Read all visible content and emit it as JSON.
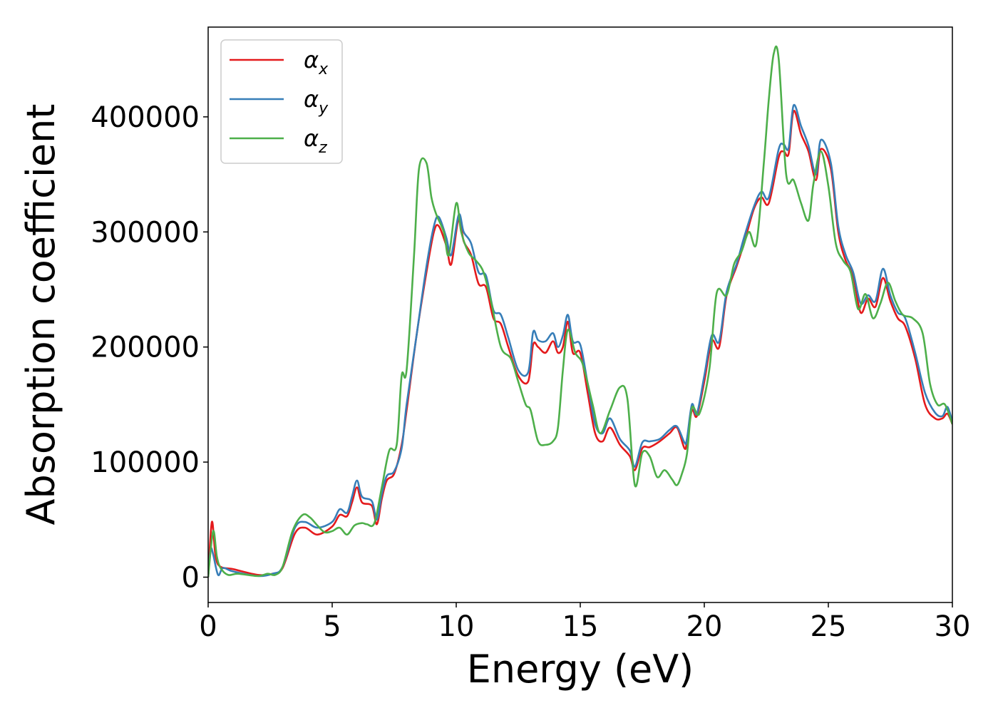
{
  "chart_data": {
    "type": "line",
    "xlabel": "Energy (eV)",
    "ylabel": "Absorption coefficient",
    "xlim": [
      0,
      30
    ],
    "ylim": [
      -22000,
      478000
    ],
    "xticks": [
      0,
      5,
      10,
      15,
      20,
      25,
      30
    ],
    "xtick_labels": [
      "0",
      "5",
      "10",
      "15",
      "20",
      "25",
      "30"
    ],
    "yticks": [
      0,
      100000,
      200000,
      300000,
      400000
    ],
    "ytick_labels": [
      "0",
      "100000",
      "200000",
      "300000",
      "400000"
    ],
    "grid": false,
    "legend_position": "top-left",
    "series": [
      {
        "name": "αx",
        "label_base": "α",
        "label_sub": "x",
        "color": "#e41a1c",
        "x": [
          0,
          0.15,
          0.3,
          0.5,
          1.0,
          2.0,
          2.6,
          3.0,
          3.5,
          3.9,
          4.4,
          5.0,
          5.3,
          5.6,
          5.8,
          6.0,
          6.2,
          6.6,
          6.8,
          7.0,
          7.2,
          7.5,
          7.8,
          8.0,
          8.4,
          8.8,
          9.1,
          9.3,
          9.6,
          9.8,
          10.1,
          10.3,
          10.6,
          10.9,
          11.2,
          11.5,
          11.8,
          12.1,
          12.5,
          12.9,
          13.1,
          13.3,
          13.6,
          13.9,
          14.1,
          14.3,
          14.5,
          14.7,
          15.0,
          15.3,
          15.6,
          15.9,
          16.2,
          16.6,
          17.0,
          17.2,
          17.5,
          17.8,
          18.2,
          18.6,
          18.9,
          19.2,
          19.3,
          19.5,
          19.7,
          20.0,
          20.3,
          20.6,
          20.9,
          21.3,
          21.6,
          22.0,
          22.3,
          22.6,
          23.0,
          23.2,
          23.4,
          23.6,
          23.9,
          24.2,
          24.5,
          24.7,
          25.1,
          25.4,
          25.7,
          26.0,
          26.3,
          26.6,
          26.9,
          27.2,
          27.5,
          27.8,
          28.1,
          28.5,
          28.9,
          29.3,
          29.6,
          29.8,
          30.0
        ],
        "y": [
          0,
          48000,
          18000,
          9000,
          7000,
          2000,
          3000,
          8000,
          38000,
          43000,
          37000,
          44000,
          54000,
          53000,
          65000,
          78000,
          65000,
          62000,
          46000,
          68000,
          84000,
          90000,
          115000,
          145000,
          210000,
          265000,
          300000,
          305000,
          288000,
          272000,
          312000,
          292000,
          280000,
          255000,
          252000,
          225000,
          220000,
          200000,
          175000,
          170000,
          202000,
          200000,
          195000,
          205000,
          195000,
          200000,
          222000,
          195000,
          195000,
          160000,
          125000,
          118000,
          130000,
          115000,
          105000,
          93000,
          112000,
          113000,
          118000,
          125000,
          130000,
          112000,
          118000,
          145000,
          140000,
          170000,
          205000,
          200000,
          245000,
          270000,
          290000,
          320000,
          330000,
          325000,
          365000,
          370000,
          368000,
          405000,
          385000,
          370000,
          345000,
          372000,
          355000,
          300000,
          275000,
          262000,
          230000,
          242000,
          235000,
          260000,
          240000,
          225000,
          218000,
          190000,
          150000,
          138000,
          138000,
          142000,
          133000
        ]
      },
      {
        "name": "αy",
        "label_base": "α",
        "label_sub": "y",
        "color": "#377eb8",
        "x": [
          0,
          0.1,
          0.2,
          0.4,
          0.6,
          1.0,
          2.0,
          2.6,
          3.0,
          3.5,
          3.9,
          4.4,
          5.0,
          5.3,
          5.6,
          5.8,
          6.0,
          6.2,
          6.6,
          6.8,
          7.0,
          7.2,
          7.5,
          7.8,
          8.0,
          8.4,
          8.8,
          9.1,
          9.3,
          9.6,
          9.8,
          10.1,
          10.3,
          10.6,
          10.9,
          11.2,
          11.5,
          11.8,
          12.1,
          12.5,
          12.9,
          13.1,
          13.3,
          13.6,
          13.9,
          14.1,
          14.3,
          14.5,
          14.7,
          15.0,
          15.3,
          15.6,
          15.9,
          16.2,
          16.6,
          17.0,
          17.2,
          17.5,
          17.8,
          18.2,
          18.6,
          18.9,
          19.2,
          19.3,
          19.5,
          19.7,
          20.0,
          20.3,
          20.6,
          20.9,
          21.3,
          21.6,
          22.0,
          22.3,
          22.6,
          23.0,
          23.2,
          23.4,
          23.6,
          23.9,
          24.2,
          24.5,
          24.7,
          25.1,
          25.4,
          25.7,
          26.0,
          26.3,
          26.6,
          26.9,
          27.2,
          27.5,
          27.8,
          28.1,
          28.5,
          28.9,
          29.3,
          29.6,
          29.8,
          30.0
        ],
        "y": [
          0,
          24000,
          20000,
          2000,
          8000,
          5000,
          1000,
          3000,
          9000,
          43000,
          48000,
          43000,
          48000,
          59000,
          56000,
          70000,
          84000,
          70000,
          66000,
          50000,
          72000,
          88000,
          92000,
          112000,
          150000,
          210000,
          270000,
          305000,
          313000,
          295000,
          280000,
          315000,
          300000,
          290000,
          265000,
          262000,
          232000,
          228000,
          208000,
          180000,
          178000,
          213000,
          206000,
          205000,
          212000,
          200000,
          210000,
          228000,
          205000,
          202000,
          168000,
          133000,
          125000,
          138000,
          120000,
          110000,
          96000,
          117000,
          118000,
          120000,
          128000,
          131000,
          117000,
          120000,
          150000,
          142000,
          175000,
          210000,
          205000,
          248000,
          272000,
          295000,
          322000,
          335000,
          330000,
          372000,
          376000,
          373000,
          410000,
          392000,
          375000,
          350000,
          380000,
          360000,
          305000,
          280000,
          265000,
          238000,
          245000,
          240000,
          268000,
          245000,
          230000,
          225000,
          195000,
          160000,
          143000,
          140000,
          148000,
          135000
        ]
      },
      {
        "name": "αz",
        "label_base": "α",
        "label_sub": "z",
        "color": "#4daf4a",
        "x": [
          0,
          0.2,
          0.35,
          0.5,
          0.8,
          1.2,
          2.0,
          2.4,
          2.7,
          3.0,
          3.4,
          3.8,
          4.1,
          4.4,
          4.7,
          5.0,
          5.3,
          5.6,
          5.9,
          6.2,
          6.4,
          6.7,
          7.0,
          7.3,
          7.6,
          7.8,
          8.0,
          8.3,
          8.5,
          8.8,
          9.0,
          9.2,
          9.5,
          9.7,
          10.0,
          10.2,
          10.5,
          10.8,
          11.1,
          11.4,
          11.8,
          12.2,
          12.5,
          12.8,
          13.0,
          13.3,
          13.6,
          13.9,
          14.1,
          14.3,
          14.5,
          14.8,
          15.1,
          15.5,
          15.8,
          16.2,
          16.6,
          16.9,
          17.2,
          17.5,
          17.8,
          18.1,
          18.4,
          18.7,
          18.9,
          19.1,
          19.3,
          19.5,
          19.8,
          20.2,
          20.5,
          20.9,
          21.2,
          21.5,
          21.8,
          22.1,
          22.4,
          22.6,
          22.8,
          23.0,
          23.3,
          23.6,
          23.9,
          24.2,
          24.4,
          24.7,
          25.0,
          25.3,
          25.6,
          25.9,
          26.2,
          26.5,
          26.8,
          27.1,
          27.4,
          27.7,
          28.0,
          28.4,
          28.8,
          29.1,
          29.4,
          29.7,
          30.0
        ],
        "y": [
          0,
          40000,
          18000,
          8000,
          2000,
          3000,
          1000,
          3000,
          2000,
          9000,
          40000,
          54000,
          52000,
          45000,
          39000,
          40000,
          43000,
          37000,
          45000,
          47000,
          46000,
          47000,
          78000,
          110000,
          115000,
          175000,
          180000,
          280000,
          355000,
          360000,
          330000,
          315000,
          300000,
          280000,
          325000,
          300000,
          282000,
          275000,
          265000,
          240000,
          200000,
          190000,
          170000,
          150000,
          145000,
          118000,
          115000,
          118000,
          130000,
          180000,
          215000,
          195000,
          185000,
          150000,
          125000,
          145000,
          165000,
          155000,
          80000,
          108000,
          105000,
          87000,
          93000,
          85000,
          80000,
          90000,
          107000,
          147000,
          142000,
          180000,
          247000,
          245000,
          272000,
          283000,
          300000,
          290000,
          360000,
          415000,
          455000,
          450000,
          350000,
          345000,
          325000,
          310000,
          342000,
          370000,
          340000,
          290000,
          275000,
          265000,
          233000,
          246000,
          225000,
          238000,
          256000,
          240000,
          228000,
          225000,
          212000,
          168000,
          150000,
          150000,
          133000
        ]
      }
    ]
  }
}
